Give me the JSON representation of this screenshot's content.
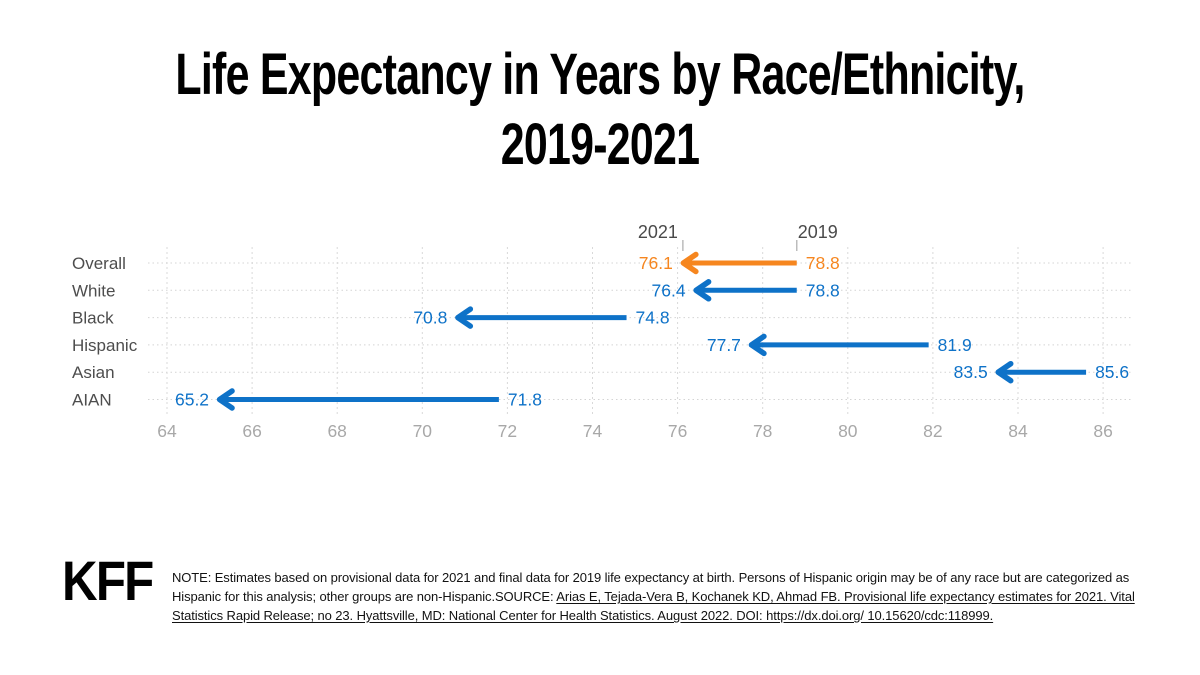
{
  "title": {
    "line1": "Life Expectancy in Years by Race/Ethnicity,",
    "line2": "2019-2021"
  },
  "chart_data": {
    "type": "arrow",
    "title": "Life Expectancy in Years by Race/Ethnicity, 2019-2021",
    "categories": [
      "Overall",
      "White",
      "Black",
      "Hispanic",
      "Asian",
      "AIAN"
    ],
    "series": [
      {
        "name": "2021",
        "values": [
          76.1,
          76.4,
          70.8,
          77.7,
          83.5,
          65.2
        ]
      },
      {
        "name": "2019",
        "values": [
          78.8,
          78.8,
          74.8,
          81.9,
          85.6,
          71.8
        ]
      }
    ],
    "year_labels": {
      "left": "2021",
      "right": "2019"
    },
    "xlim": [
      64,
      86
    ],
    "xticks": [
      64,
      66,
      68,
      70,
      72,
      74,
      76,
      78,
      80,
      82,
      84,
      86
    ],
    "grid": true,
    "highlight_row": "Overall",
    "colors": {
      "highlight": "#F6861F",
      "default": "#0E72C8",
      "grid": "#d9d9d9",
      "row_guide": "#d4d4d4",
      "row_label": "#4d4d4d",
      "tick_label": "#a8a8a8",
      "year_label": "#4a4a4a",
      "year_tick": "#bcbcbc"
    }
  },
  "footer": {
    "logo": "KFF",
    "note_prefix": "NOTE: Estimates based on provisional data for 2021 and final data for 2019 life expectancy at birth. Persons of Hispanic origin may be of any race but are categorized as Hispanic for this analysis; other groups are non-Hispanic.SOURCE: ",
    "source_link": "Arias E, Tejada-Vera B, Kochanek KD, Ahmad FB. Provisional life expectancy estimates for 2021. Vital Statistics Rapid Release; no 23. Hyattsville, MD: National Center for Health Statistics. August 2022. DOI: https://dx.doi.org/ 10.15620/cdc:118999."
  }
}
